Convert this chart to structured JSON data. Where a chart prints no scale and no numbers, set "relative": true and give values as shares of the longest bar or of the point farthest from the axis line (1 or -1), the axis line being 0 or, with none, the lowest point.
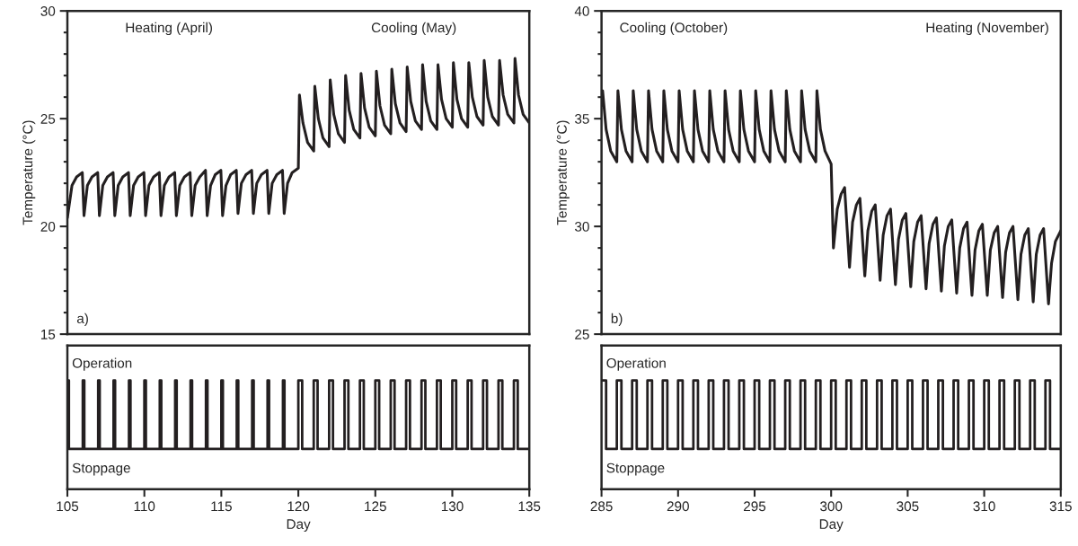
{
  "chart_data": [
    {
      "type": "line",
      "ylabel": "Temperature (°C)",
      "xlim": [
        105,
        135
      ],
      "ylim": [
        15,
        30
      ],
      "tick_labels": "y",
      "yticks": [
        15,
        {
          "value": 16,
          "label": null
        },
        {
          "value": 17,
          "label": null
        },
        {
          "value": 18,
          "label": null
        },
        {
          "value": 19,
          "label": null
        },
        20,
        {
          "value": 21,
          "label": null
        },
        {
          "value": 22,
          "label": null
        },
        {
          "value": 23,
          "label": null
        },
        {
          "value": 24,
          "label": null
        },
        25,
        {
          "value": 26,
          "label": null
        },
        {
          "value": 27,
          "label": null
        },
        {
          "value": 28,
          "label": null
        },
        {
          "value": 29,
          "label": null
        },
        30
      ],
      "annotations": [
        "Heating (April)",
        "Cooling (May)",
        "a)"
      ],
      "series": [
        {
          "color": "#231f20",
          "x": [
            105,
            105.3,
            105.6,
            105.97,
            106.08,
            106.3,
            106.6,
            106.97,
            107.08,
            107.3,
            107.6,
            107.97,
            108.08,
            108.3,
            108.6,
            108.97,
            109.08,
            109.3,
            109.6,
            109.97,
            110.08,
            110.3,
            110.6,
            110.97,
            111.08,
            111.3,
            111.6,
            111.97,
            112.08,
            112.3,
            112.6,
            112.97,
            113.08,
            113.3,
            113.6,
            113.97,
            114.08,
            114.3,
            114.6,
            114.97,
            115.08,
            115.3,
            115.6,
            115.97,
            116.08,
            116.3,
            116.6,
            116.97,
            117.08,
            117.3,
            117.6,
            117.97,
            118.08,
            118.3,
            118.6,
            118.97,
            119.08,
            119.3,
            119.6,
            120.0,
            120.07,
            120.3,
            120.6,
            121.0,
            121.07,
            121.3,
            121.6,
            122.0,
            122.07,
            122.3,
            122.6,
            123.0,
            123.07,
            123.3,
            123.6,
            124.0,
            124.07,
            124.3,
            124.6,
            125.0,
            125.07,
            125.3,
            125.6,
            126.0,
            126.07,
            126.3,
            126.6,
            127.0,
            127.07,
            127.3,
            127.6,
            128.0,
            128.07,
            128.3,
            128.6,
            129.0,
            129.07,
            129.3,
            129.6,
            130.0,
            130.07,
            130.3,
            130.6,
            131.0,
            131.07,
            131.3,
            131.6,
            132.0,
            132.07,
            132.3,
            132.6,
            133.0,
            133.07,
            133.3,
            133.6,
            134.0,
            134.07,
            134.3,
            134.6,
            135.0
          ],
          "values": [
            20.4,
            21.9,
            22.3,
            22.5,
            20.5,
            21.9,
            22.3,
            22.5,
            20.5,
            21.9,
            22.3,
            22.5,
            20.5,
            21.9,
            22.3,
            22.5,
            20.5,
            21.9,
            22.3,
            22.5,
            20.5,
            21.9,
            22.3,
            22.5,
            20.5,
            21.9,
            22.3,
            22.5,
            20.5,
            21.9,
            22.3,
            22.5,
            20.5,
            21.9,
            22.3,
            22.6,
            20.5,
            21.9,
            22.4,
            22.6,
            20.5,
            21.9,
            22.4,
            22.6,
            20.6,
            22.0,
            22.4,
            22.6,
            20.6,
            22.0,
            22.4,
            22.6,
            20.6,
            22.0,
            22.4,
            22.6,
            20.6,
            22.0,
            22.5,
            22.7,
            26.1,
            24.8,
            23.9,
            23.5,
            26.5,
            25.0,
            24.1,
            23.7,
            26.8,
            25.2,
            24.3,
            23.9,
            27.0,
            25.4,
            24.5,
            24.1,
            27.1,
            25.5,
            24.6,
            24.2,
            27.2,
            25.6,
            24.7,
            24.3,
            27.3,
            25.7,
            24.8,
            24.4,
            27.4,
            25.8,
            24.9,
            24.5,
            27.5,
            25.8,
            24.9,
            24.5,
            27.5,
            25.9,
            25.0,
            24.6,
            27.6,
            25.9,
            25.0,
            24.6,
            27.6,
            26.0,
            25.1,
            24.7,
            27.7,
            26.0,
            25.1,
            24.7,
            27.7,
            26.1,
            25.2,
            24.8,
            27.8,
            26.1,
            25.2,
            24.8
          ]
        }
      ]
    },
    {
      "type": "step",
      "relative": true,
      "xlabel": "Day",
      "xlim": [
        105,
        135
      ],
      "xticks": [
        105,
        110,
        115,
        120,
        125,
        130,
        135
      ],
      "tick_labels": "x",
      "annotations": [
        "Operation",
        "Stoppage"
      ],
      "series": [
        {
          "color": "#231f20",
          "x": [
            105,
            105.1,
            106,
            106.1,
            107,
            107.1,
            108,
            108.1,
            109,
            109.1,
            110,
            110.1,
            111,
            111.1,
            112,
            112.1,
            113,
            113.1,
            114,
            114.1,
            115,
            115.1,
            116,
            116.1,
            117,
            117.1,
            118,
            118.1,
            119,
            119.1,
            120,
            120.25,
            121,
            121.25,
            122,
            122.25,
            123,
            123.25,
            124,
            124.25,
            125,
            125.25,
            126,
            126.25,
            127,
            127.25,
            128,
            128.25,
            129,
            129.25,
            130,
            130.25,
            131,
            131.25,
            132,
            132.25,
            133,
            133.25,
            134,
            134.25,
            135
          ],
          "values": [
            1,
            0.37,
            1,
            0.37,
            1,
            0.37,
            1,
            0.37,
            1,
            0.37,
            1,
            0.37,
            1,
            0.37,
            1,
            0.37,
            1,
            0.37,
            1,
            0.37,
            1,
            0.37,
            1,
            0.37,
            1,
            0.37,
            1,
            0.37,
            1,
            0.37,
            1,
            0.37,
            1,
            0.37,
            1,
            0.37,
            1,
            0.37,
            1,
            0.37,
            1,
            0.37,
            1,
            0.37,
            1,
            0.37,
            1,
            0.37,
            1,
            0.37,
            1,
            0.37,
            1,
            0.37,
            1,
            0.37,
            1,
            0.37,
            1,
            0.37,
            0.37
          ]
        }
      ]
    },
    {
      "type": "line",
      "ylabel": "Temperature (°C)",
      "xlim": [
        285,
        315
      ],
      "ylim": [
        25,
        40
      ],
      "tick_labels": "y",
      "yticks": [
        25,
        {
          "value": 26,
          "label": null
        },
        {
          "value": 27,
          "label": null
        },
        {
          "value": 28,
          "label": null
        },
        {
          "value": 29,
          "label": null
        },
        30,
        {
          "value": 31,
          "label": null
        },
        {
          "value": 32,
          "label": null
        },
        {
          "value": 33,
          "label": null
        },
        {
          "value": 34,
          "label": null
        },
        35,
        {
          "value": 36,
          "label": null
        },
        {
          "value": 37,
          "label": null
        },
        {
          "value": 38,
          "label": null
        },
        {
          "value": 39,
          "label": null
        },
        40
      ],
      "annotations": [
        "Cooling (October)",
        "Heating (November)",
        "b)"
      ],
      "series": [
        {
          "color": "#231f20",
          "x": [
            285.0,
            285.07,
            285.3,
            285.6,
            286.0,
            286.07,
            286.3,
            286.6,
            287.0,
            287.07,
            287.3,
            287.6,
            288.0,
            288.07,
            288.3,
            288.6,
            289.0,
            289.07,
            289.3,
            289.6,
            290.0,
            290.07,
            290.3,
            290.6,
            291.0,
            291.07,
            291.3,
            291.6,
            292.0,
            292.07,
            292.3,
            292.6,
            293.0,
            293.07,
            293.3,
            293.6,
            294.0,
            294.07,
            294.3,
            294.6,
            295.0,
            295.07,
            295.3,
            295.6,
            296.0,
            296.07,
            296.3,
            296.6,
            297.0,
            297.07,
            297.3,
            297.6,
            298.0,
            298.07,
            298.3,
            298.6,
            299.0,
            299.07,
            299.3,
            299.6,
            300.0,
            300.15,
            300.4,
            300.65,
            300.88,
            301.2,
            301.4,
            301.65,
            301.88,
            302.2,
            302.4,
            302.65,
            302.88,
            303.2,
            303.4,
            303.65,
            303.88,
            304.2,
            304.4,
            304.65,
            304.88,
            305.2,
            305.4,
            305.65,
            305.88,
            306.2,
            306.4,
            306.65,
            306.88,
            307.2,
            307.4,
            307.65,
            307.88,
            308.2,
            308.4,
            308.65,
            308.88,
            309.2,
            309.4,
            309.65,
            309.88,
            310.2,
            310.4,
            310.65,
            310.88,
            311.2,
            311.4,
            311.65,
            311.88,
            312.2,
            312.4,
            312.65,
            312.88,
            313.2,
            313.4,
            313.65,
            313.88,
            314.2,
            314.4,
            314.65,
            315.0
          ],
          "values": [
            35.6,
            36.3,
            34.5,
            33.5,
            33.0,
            36.3,
            34.5,
            33.5,
            33.0,
            36.3,
            34.5,
            33.5,
            33.0,
            36.3,
            34.5,
            33.5,
            33.0,
            36.3,
            34.5,
            33.5,
            33.0,
            36.3,
            34.5,
            33.5,
            33.0,
            36.3,
            34.5,
            33.5,
            33.0,
            36.3,
            34.5,
            33.5,
            33.0,
            36.3,
            34.5,
            33.5,
            33.0,
            36.3,
            34.5,
            33.5,
            33.0,
            36.3,
            34.5,
            33.5,
            33.0,
            36.3,
            34.5,
            33.5,
            33.0,
            36.3,
            34.5,
            33.5,
            33.0,
            36.3,
            34.5,
            33.5,
            33.0,
            36.3,
            34.5,
            33.5,
            32.9,
            29.0,
            30.8,
            31.5,
            31.8,
            28.1,
            30.2,
            31.0,
            31.3,
            27.7,
            29.8,
            30.7,
            31.0,
            27.5,
            29.6,
            30.5,
            30.8,
            27.3,
            29.4,
            30.3,
            30.6,
            27.2,
            29.3,
            30.2,
            30.5,
            27.1,
            29.2,
            30.1,
            30.4,
            27.0,
            29.1,
            30.0,
            30.3,
            26.9,
            29.0,
            29.9,
            30.2,
            26.8,
            28.9,
            29.8,
            30.1,
            26.8,
            28.9,
            29.7,
            30.0,
            26.7,
            28.8,
            29.7,
            30.0,
            26.6,
            28.7,
            29.6,
            29.9,
            26.5,
            28.7,
            29.6,
            29.9,
            26.4,
            28.3,
            29.3,
            29.8
          ]
        }
      ]
    },
    {
      "type": "step",
      "relative": true,
      "xlabel": "Day",
      "xlim": [
        285,
        315
      ],
      "xticks": [
        285,
        290,
        295,
        300,
        305,
        310,
        315
      ],
      "tick_labels": "x",
      "annotations": [
        "Operation",
        "Stoppage"
      ],
      "series": [
        {
          "color": "#231f20",
          "x": [
            285,
            285.3,
            286,
            286.3,
            287,
            287.3,
            288,
            288.3,
            289,
            289.3,
            290,
            290.3,
            291,
            291.3,
            292,
            292.3,
            293,
            293.3,
            294,
            294.3,
            295,
            295.3,
            296,
            296.3,
            297,
            297.3,
            298,
            298.3,
            299,
            299.3,
            300,
            300.3,
            301,
            301.3,
            302,
            302.3,
            303,
            303.3,
            304,
            304.3,
            305,
            305.3,
            306,
            306.3,
            307,
            307.3,
            308,
            308.3,
            309,
            309.3,
            310,
            310.3,
            311,
            311.3,
            312,
            312.3,
            313,
            313.3,
            314,
            314.3,
            315
          ],
          "values": [
            1,
            0.37,
            1,
            0.37,
            1,
            0.37,
            1,
            0.37,
            1,
            0.37,
            1,
            0.37,
            1,
            0.37,
            1,
            0.37,
            1,
            0.37,
            1,
            0.37,
            1,
            0.37,
            1,
            0.37,
            1,
            0.37,
            1,
            0.37,
            1,
            0.37,
            1,
            0.37,
            1,
            0.37,
            1,
            0.37,
            1,
            0.37,
            1,
            0.37,
            1,
            0.37,
            1,
            0.37,
            1,
            0.37,
            1,
            0.37,
            1,
            0.37,
            1,
            0.37,
            1,
            0.37,
            1,
            0.37,
            1,
            0.37,
            1,
            0.37,
            0.37
          ]
        }
      ]
    }
  ]
}
